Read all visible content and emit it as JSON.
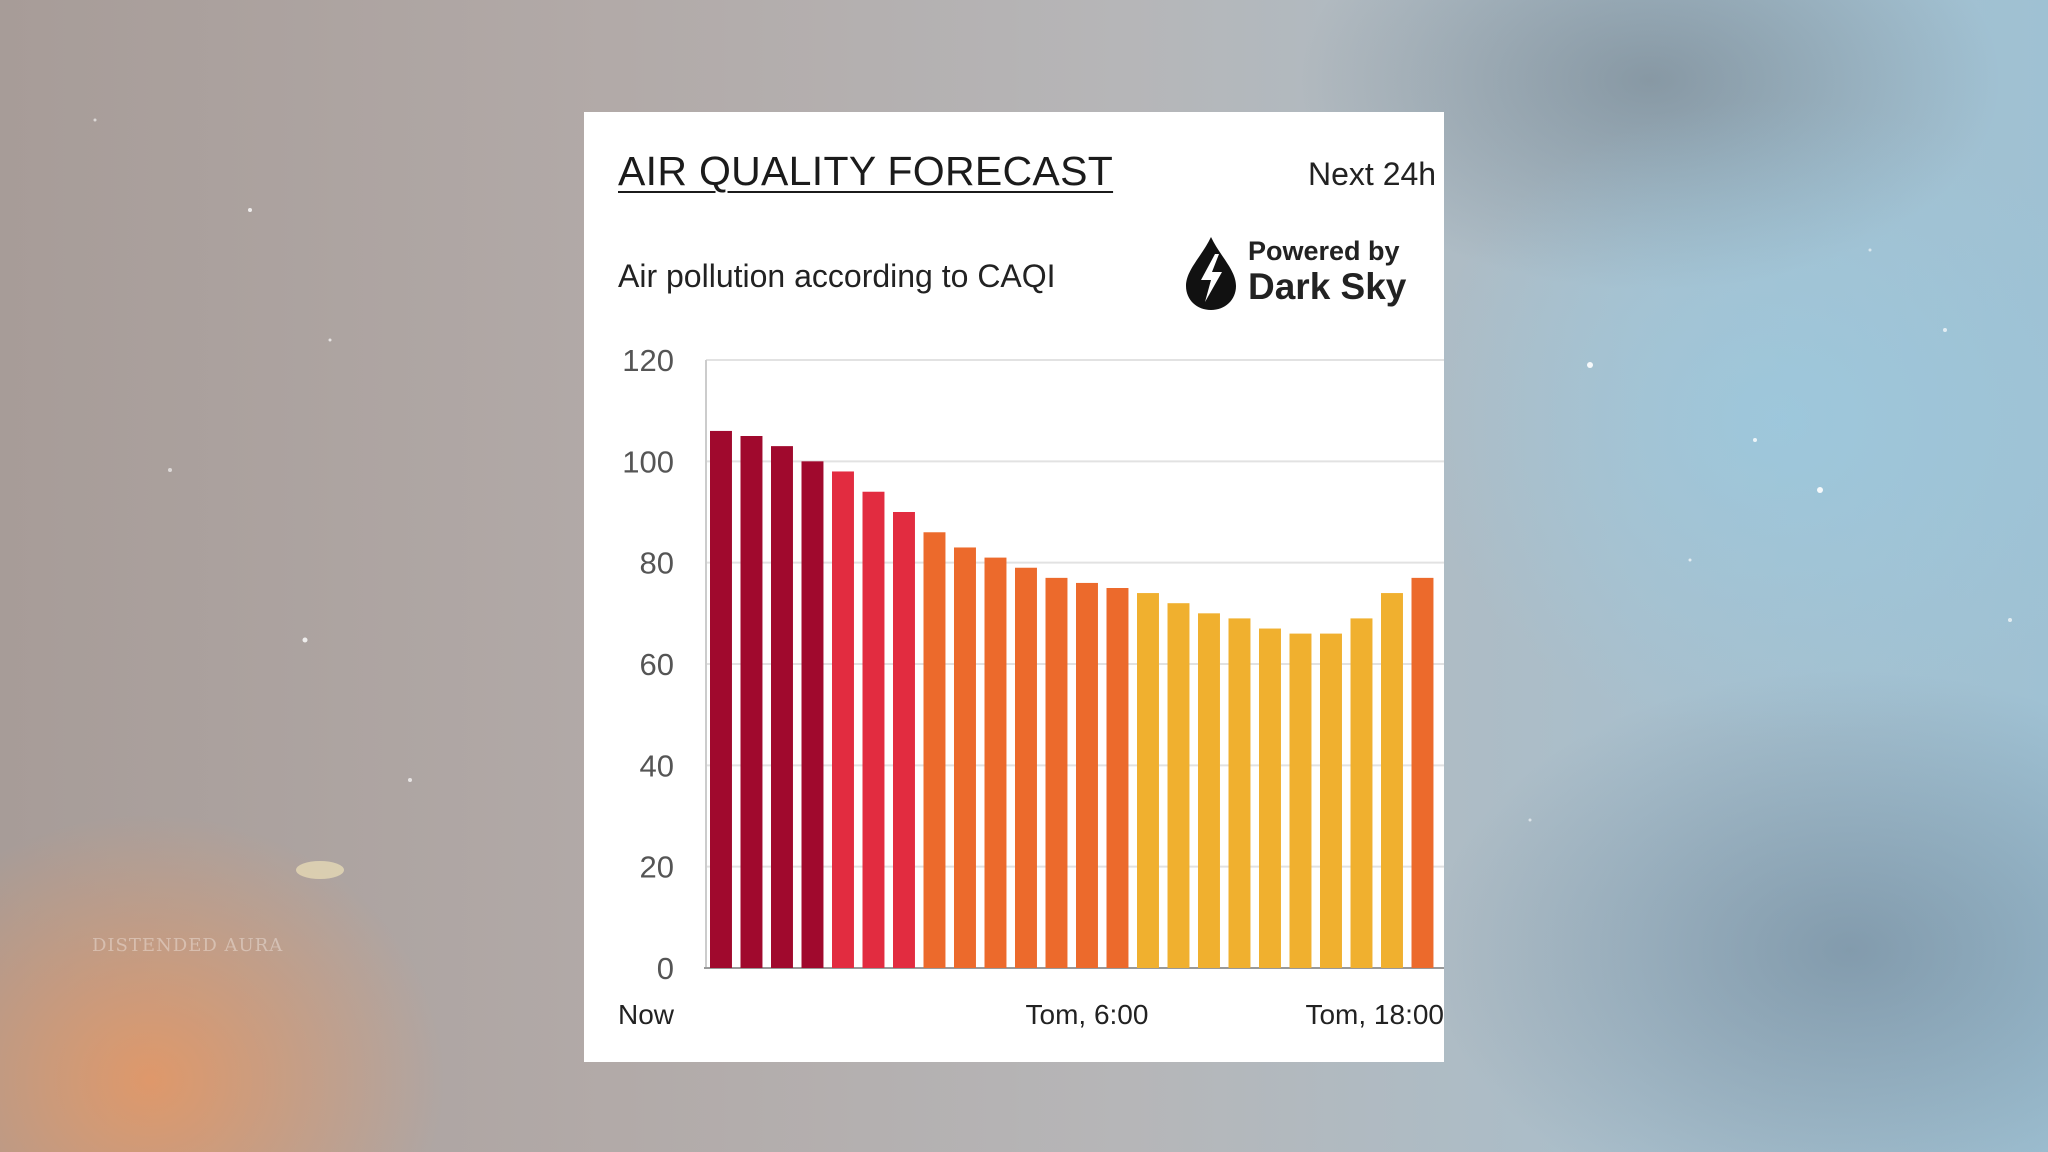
{
  "card": {
    "title": "AIR QUALITY FORECAST",
    "range": "Next 24h",
    "subtitle": "Air pollution according to CAQI",
    "powered_by": "Powered by",
    "brand": "Dark Sky"
  },
  "watermark": "DISTENDED AURA",
  "chart_data": {
    "type": "bar",
    "title": "AIR QUALITY FORECAST",
    "subtitle": "Air pollution according to CAQI",
    "xlabel": "",
    "ylabel": "",
    "ylim": [
      0,
      120
    ],
    "yticks": [
      0,
      20,
      40,
      60,
      80,
      100,
      120
    ],
    "grid": true,
    "x_tick_labels": [
      {
        "label": "Now",
        "index": 0
      },
      {
        "label": "Tom, 6:00",
        "index": 12
      },
      {
        "label": "Tom, 18:00",
        "index": 24
      }
    ],
    "values": [
      106,
      105,
      103,
      100,
      98,
      94,
      90,
      86,
      83,
      81,
      79,
      77,
      76,
      75,
      74,
      72,
      70,
      69,
      67,
      66,
      66,
      69,
      74,
      77
    ],
    "colors": [
      "#a0092d",
      "#a0092d",
      "#a0092d",
      "#a0092d",
      "#e22c40",
      "#e22c40",
      "#e22c40",
      "#ec6a2c",
      "#ec6a2c",
      "#ec6a2c",
      "#ec6a2c",
      "#ec6a2c",
      "#ec6a2c",
      "#ec6a2c",
      "#f0b02f",
      "#f0b02f",
      "#f0b02f",
      "#f0b02f",
      "#f0b02f",
      "#f0b02f",
      "#f0b02f",
      "#f0b02f",
      "#f0b02f",
      "#ec6a2c"
    ]
  }
}
